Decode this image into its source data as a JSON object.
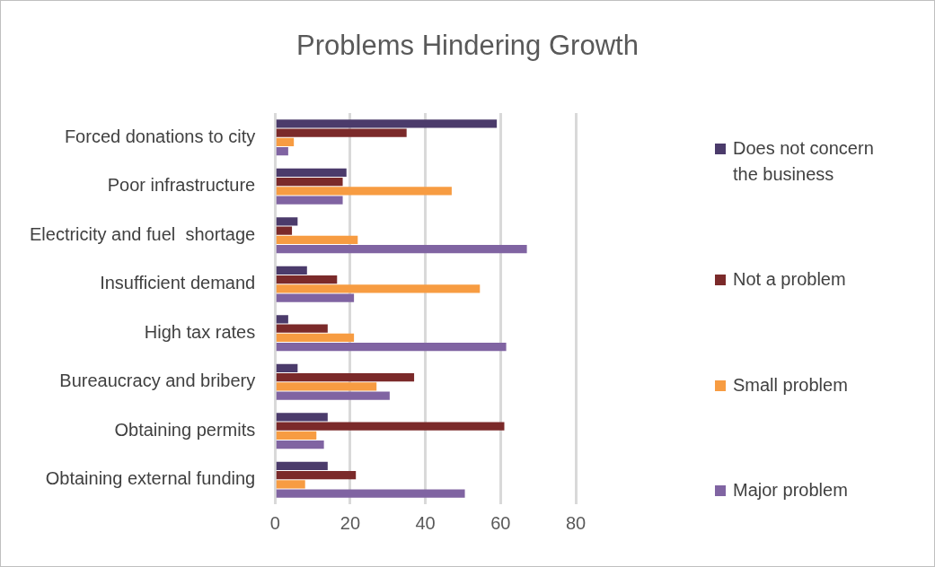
{
  "chart_data": {
    "type": "bar",
    "orientation": "horizontal",
    "title": "Problems Hindering Growth",
    "categories": [
      "Forced donations to city",
      "Poor infrastructure",
      "Electricity and fuel  shortage",
      "Insufficient demand",
      "High tax rates",
      "Bureaucracy and bribery",
      "Obtaining permits",
      "Obtaining external funding"
    ],
    "series": [
      {
        "name": "Does not concern the business",
        "color": "#4b3b6b",
        "values": [
          59,
          19,
          6,
          8.5,
          3.5,
          6,
          14,
          14
        ]
      },
      {
        "name": "Not a problem",
        "color": "#7b2a2a",
        "values": [
          35,
          18,
          4.5,
          16.5,
          14,
          37,
          61,
          21.5
        ]
      },
      {
        "name": "Small problem",
        "color": "#f79c42",
        "values": [
          5,
          47,
          22,
          54.5,
          21,
          27,
          11,
          8
        ]
      },
      {
        "name": "Major problem",
        "color": "#8064a2",
        "values": [
          3.5,
          18,
          67,
          21,
          61.5,
          30.5,
          13,
          50.5
        ]
      }
    ],
    "xlim": [
      0,
      80
    ],
    "xticks": [
      0,
      20,
      40,
      60,
      80
    ],
    "grid": "x",
    "legend": "right"
  }
}
